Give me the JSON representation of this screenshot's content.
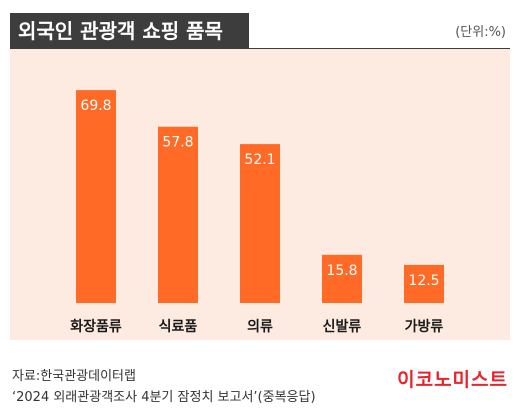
{
  "header": {
    "title": "외국인 관광객 쇼핑 품목",
    "unit": "(단위:%)"
  },
  "chart_data": {
    "type": "bar",
    "title": "외국인 관광객 쇼핑 품목",
    "unit": "(단위:%)",
    "categories": [
      "화장품류",
      "식료품",
      "의류",
      "신발류",
      "가방류"
    ],
    "values": [
      69.8,
      57.8,
      52.1,
      15.8,
      12.5
    ],
    "bar_color": "#ff6a26",
    "background_color": "#fdebe1",
    "grid": false,
    "legend": "none"
  },
  "footer": {
    "source_line1": "자료:한국관광데이터랩",
    "source_line2": "‘2024 외래관광객조사 4분기 잠정치 보고서’(중복응답)",
    "logo": "이코노미스트"
  }
}
